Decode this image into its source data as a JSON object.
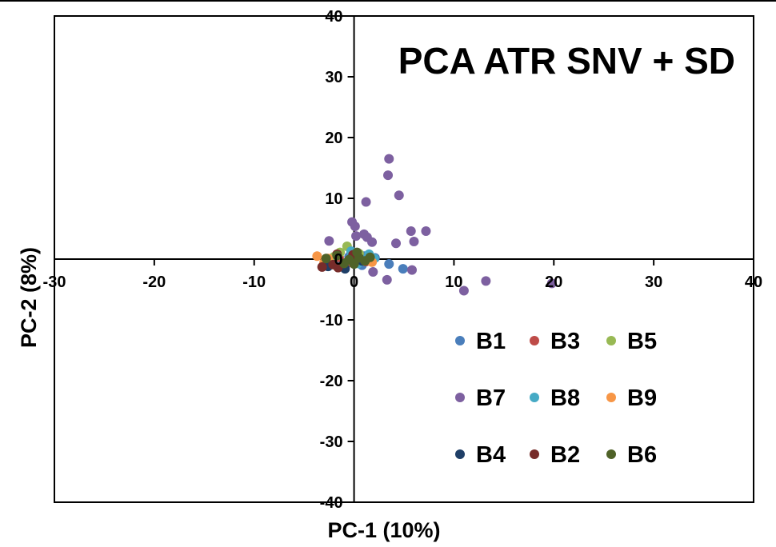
{
  "chart_data": {
    "type": "scatter",
    "title": "PCA ATR SNV + SD",
    "xlabel": "PC-1 (10%)",
    "ylabel": "PC-2 (8%)",
    "xlim": [
      -30,
      40
    ],
    "ylim": [
      -40,
      40
    ],
    "xticks": [
      -30,
      -20,
      -10,
      0,
      10,
      20,
      30,
      40
    ],
    "yticks": [
      -40,
      -30,
      -20,
      -10,
      0,
      10,
      20,
      30,
      40
    ],
    "grid": false,
    "legend_position": "bottom-right",
    "series": [
      {
        "name": "B1",
        "color": "#4A7EBB",
        "points": [
          [
            3.5,
            -0.8
          ],
          [
            4.9,
            -1.6
          ],
          [
            1.0,
            0.5
          ],
          [
            0.2,
            -0.3
          ],
          [
            -0.5,
            0.4
          ],
          [
            2.1,
            0.2
          ],
          [
            -1.2,
            -0.6
          ],
          [
            0.8,
            -1.0
          ]
        ]
      },
      {
        "name": "B3",
        "color": "#BE4B48",
        "points": [
          [
            -1.5,
            0.3
          ],
          [
            -0.8,
            -0.9
          ],
          [
            0.3,
            0.6
          ],
          [
            -2.2,
            -0.2
          ],
          [
            1.2,
            -0.4
          ]
        ]
      },
      {
        "name": "B5",
        "color": "#98B954",
        "points": [
          [
            -0.7,
            2.1
          ],
          [
            -1.4,
            1.1
          ],
          [
            0.5,
            0.9
          ],
          [
            1.6,
            -0.1
          ],
          [
            -2.0,
            0.4
          ]
        ]
      },
      {
        "name": "B7",
        "color": "#7D60A0",
        "points": [
          [
            3.5,
            16.5
          ],
          [
            3.4,
            13.8
          ],
          [
            1.2,
            9.4
          ],
          [
            4.5,
            10.5
          ],
          [
            -0.2,
            6.1
          ],
          [
            0.1,
            5.4
          ],
          [
            1.0,
            4.1
          ],
          [
            1.3,
            3.6
          ],
          [
            0.2,
            3.8
          ],
          [
            -2.5,
            3.0
          ],
          [
            1.8,
            2.8
          ],
          [
            4.2,
            2.6
          ],
          [
            5.7,
            4.6
          ],
          [
            7.2,
            4.6
          ],
          [
            6.0,
            2.9
          ],
          [
            3.3,
            -3.4
          ],
          [
            5.8,
            -1.8
          ],
          [
            11.0,
            -5.2
          ],
          [
            13.2,
            -3.6
          ],
          [
            19.8,
            -4.0
          ],
          [
            1.9,
            -2.1
          ]
        ]
      },
      {
        "name": "B8",
        "color": "#46AAC5",
        "points": [
          [
            1.5,
            0.8
          ],
          [
            0.9,
            -0.2
          ],
          [
            -0.3,
            1.3
          ],
          [
            2.0,
            0.1
          ],
          [
            0.4,
            -0.7
          ]
        ]
      },
      {
        "name": "B9",
        "color": "#F79646",
        "points": [
          [
            -3.7,
            0.5
          ],
          [
            -3.0,
            -0.6
          ],
          [
            -2.6,
            0.1
          ],
          [
            1.8,
            -0.5
          ],
          [
            1.5,
            0.0
          ]
        ]
      },
      {
        "name": "B4",
        "color": "#1F3F67",
        "points": [
          [
            -0.9,
            -1.6
          ],
          [
            -2.6,
            -1.2
          ],
          [
            0.8,
            -0.3
          ],
          [
            -0.2,
            0.2
          ]
        ]
      },
      {
        "name": "B2",
        "color": "#772C2A",
        "points": [
          [
            -3.2,
            -1.3
          ],
          [
            -1.6,
            -1.4
          ],
          [
            -2.1,
            -0.9
          ],
          [
            -0.1,
            0.7
          ],
          [
            -1.7,
            0.8
          ]
        ]
      },
      {
        "name": "B6",
        "color": "#4F6228",
        "points": [
          [
            -1.7,
            0.6
          ],
          [
            0.5,
            0.2
          ],
          [
            -0.5,
            -0.1
          ],
          [
            1.1,
            -0.3
          ],
          [
            -1.0,
            -0.7
          ],
          [
            0.0,
            -0.8
          ],
          [
            1.6,
            0.3
          ],
          [
            -2.8,
            0.1
          ],
          [
            0.3,
            1.1
          ]
        ]
      }
    ]
  }
}
